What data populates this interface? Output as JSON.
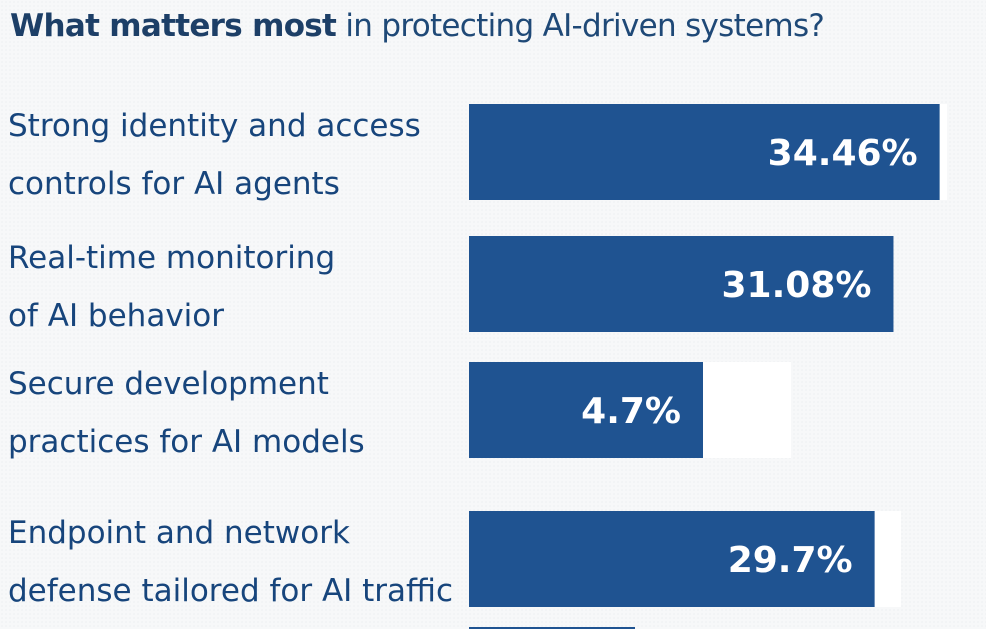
{
  "chart_data": {
    "type": "bar",
    "orientation": "horizontal",
    "title_bold": "What matters most",
    "title_rest": "in protecting AI-driven systems?",
    "categories": [
      [
        "Strong identity and access",
        "controls for AI agents"
      ],
      [
        "Real-time monitoring",
        "of AI behavior"
      ],
      [
        "Secure development",
        "practices for AI models"
      ],
      [
        "Endpoint and network",
        "defense tailored for AI traffic"
      ]
    ],
    "values": [
      34.46,
      31.08,
      4.7,
      29.7
    ],
    "value_labels": [
      "34.46%",
      "31.08%",
      "4.7%",
      "29.7%"
    ],
    "bar_color": "#1f5391",
    "track_color": "#ffffff",
    "xlim": [
      0,
      35
    ]
  }
}
